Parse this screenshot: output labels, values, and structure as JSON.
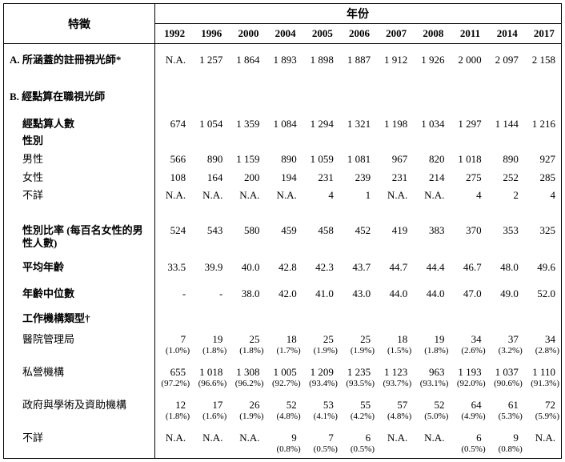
{
  "table": {
    "header": {
      "characteristic_label": "特徵",
      "year_group_label": "年份",
      "years": [
        "1992",
        "1996",
        "2000",
        "2004",
        "2005",
        "2006",
        "2007",
        "2008",
        "2011",
        "2014",
        "2017"
      ]
    },
    "rows": [
      {
        "label": "A. 所涵蓋的註冊視光師*",
        "bold": true,
        "indent": 0,
        "values": [
          "N.A.",
          "1 257",
          "1 864",
          "1 893",
          "1 898",
          "1 887",
          "1 912",
          "1 926",
          "2 000",
          "2 097",
          "2 158"
        ]
      },
      {
        "label": "B. 經點算在職視光師",
        "bold": true,
        "indent": 0,
        "values": []
      },
      {
        "label": "經點算人數",
        "bold": true,
        "indent": 1,
        "values": [
          "674",
          "1 054",
          "1 359",
          "1 084",
          "1 294",
          "1 321",
          "1 198",
          "1 034",
          "1 297",
          "1 144",
          "1 216"
        ]
      },
      {
        "label": "性別",
        "bold": true,
        "indent": 1,
        "values": []
      },
      {
        "label": "男性",
        "bold": false,
        "indent": 1,
        "values": [
          "566",
          "890",
          "1 159",
          "890",
          "1 059",
          "1 081",
          "967",
          "820",
          "1 018",
          "890",
          "927"
        ]
      },
      {
        "label": "女性",
        "bold": false,
        "indent": 1,
        "values": [
          "108",
          "164",
          "200",
          "194",
          "231",
          "239",
          "231",
          "214",
          "275",
          "252",
          "285"
        ]
      },
      {
        "label": "不詳",
        "bold": false,
        "indent": 1,
        "values": [
          "N.A.",
          "N.A.",
          "N.A.",
          "N.A.",
          "4",
          "1",
          "N.A.",
          "N.A.",
          "4",
          "2",
          "4"
        ]
      },
      {
        "label": "性別比率 (每百名女性的男性人數)",
        "bold": true,
        "indent": 1,
        "values": [
          "524",
          "543",
          "580",
          "459",
          "458",
          "452",
          "419",
          "383",
          "370",
          "353",
          "325"
        ]
      },
      {
        "label": "平均年齡",
        "bold": true,
        "indent": 1,
        "values": [
          "33.5",
          "39.9",
          "40.0",
          "42.8",
          "42.3",
          "43.7",
          "44.7",
          "44.4",
          "46.7",
          "48.0",
          "49.6"
        ]
      },
      {
        "label": "年齡中位數",
        "bold": true,
        "indent": 1,
        "values": [
          "-",
          "-",
          "38.0",
          "42.0",
          "41.0",
          "43.0",
          "44.0",
          "44.0",
          "47.0",
          "49.0",
          "52.0"
        ]
      },
      {
        "label": "工作機構類型†",
        "bold": true,
        "indent": 1,
        "values": []
      },
      {
        "label": "醫院管理局",
        "bold": false,
        "indent": 1,
        "values": [
          "7",
          "19",
          "25",
          "18",
          "25",
          "25",
          "18",
          "19",
          "34",
          "37",
          "34"
        ],
        "pcts": [
          "(1.0%)",
          "(1.8%)",
          "(1.8%)",
          "(1.7%)",
          "(1.9%)",
          "(1.9%)",
          "(1.5%)",
          "(1.8%)",
          "(2.6%)",
          "(3.2%)",
          "(2.8%)"
        ]
      },
      {
        "label": "私營機構",
        "bold": false,
        "indent": 1,
        "values": [
          "655",
          "1 018",
          "1 308",
          "1 005",
          "1 209",
          "1 235",
          "1 123",
          "963",
          "1 193",
          "1 037",
          "1 110"
        ],
        "pcts": [
          "(97.2%)",
          "(96.6%)",
          "(96.2%)",
          "(92.7%)",
          "(93.4%)",
          "(93.5%)",
          "(93.7%)",
          "(93.1%)",
          "(92.0%)",
          "(90.6%)",
          "(91.3%)"
        ]
      },
      {
        "label": "政府與學術及資助機構",
        "bold": false,
        "indent": 1,
        "values": [
          "12",
          "17",
          "26",
          "52",
          "53",
          "55",
          "57",
          "52",
          "64",
          "61",
          "72"
        ],
        "pcts": [
          "(1.8%)",
          "(1.6%)",
          "(1.9%)",
          "(4.8%)",
          "(4.1%)",
          "(4.2%)",
          "(4.8%)",
          "(5.0%)",
          "(4.9%)",
          "(5.3%)",
          "(5.9%)"
        ]
      },
      {
        "label": "不詳",
        "bold": false,
        "indent": 1,
        "values": [
          "N.A.",
          "N.A.",
          "N.A.",
          "9",
          "7",
          "6",
          "N.A.",
          "N.A.",
          "6",
          "9",
          "N.A."
        ],
        "pcts": [
          "",
          "",
          "",
          "(0.8%)",
          "(0.5%)",
          "(0.5%)",
          "",
          "",
          "(0.5%)",
          "(0.8%)",
          ""
        ]
      }
    ]
  }
}
